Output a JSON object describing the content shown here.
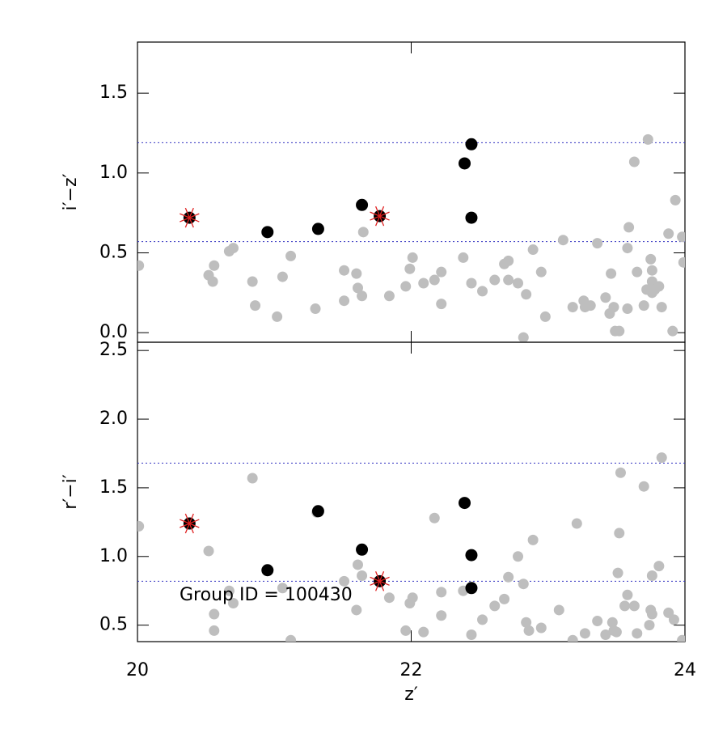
{
  "chart_data": [
    {
      "type": "scatter",
      "ylabel": "i′−z′",
      "xlim": [
        20,
        24
      ],
      "xticks": [
        20,
        22,
        24
      ],
      "xticklabels": false,
      "ylim": [
        -0.06,
        1.82
      ],
      "yticks": [
        {
          "value": 0,
          "label": "0.0"
        },
        {
          "value": 0.5,
          "label": "0.5"
        },
        {
          "value": 1,
          "label": "1.0"
        },
        {
          "value": 1.5,
          "label": "1.5"
        }
      ],
      "hlines": [
        1.19,
        0.57
      ],
      "hline_color": "#3030c0",
      "series": [
        {
          "color": "#bebebe",
          "marker": "circle",
          "x": [
            20.01,
            20.52,
            20.56,
            20.55,
            20.67,
            20.7,
            20.84,
            20.86,
            21.02,
            21.06,
            21.12,
            21.3,
            21.51,
            21.51,
            21.6,
            21.61,
            21.64,
            21.65,
            21.84,
            21.96,
            21.99,
            22.01,
            22.09,
            22.17,
            22.22,
            22.22,
            22.38,
            22.44,
            22.52,
            22.61,
            22.68,
            22.71,
            22.71,
            22.78,
            22.82,
            22.84,
            22.89,
            22.95,
            22.98,
            23.11,
            23.18,
            23.26,
            23.27,
            23.31,
            23.36,
            23.42,
            23.46,
            23.45,
            23.48,
            23.49,
            23.52,
            23.58,
            23.58,
            23.59,
            23.63,
            23.65,
            23.7,
            23.72,
            23.73,
            23.75,
            23.76,
            23.76,
            23.76,
            23.78,
            23.81,
            23.83,
            23.88,
            23.91,
            23.93,
            23.98,
            23.99
          ],
          "y": [
            0.42,
            0.36,
            0.42,
            0.32,
            0.51,
            0.53,
            0.32,
            0.17,
            0.1,
            0.35,
            0.48,
            0.15,
            0.2,
            0.39,
            0.37,
            0.28,
            0.23,
            0.63,
            0.23,
            0.29,
            0.4,
            0.47,
            0.31,
            0.33,
            0.38,
            0.18,
            0.47,
            0.31,
            0.26,
            0.33,
            0.43,
            0.45,
            0.33,
            0.31,
            -0.03,
            0.24,
            0.52,
            0.38,
            0.1,
            0.58,
            0.16,
            0.2,
            0.16,
            0.17,
            0.56,
            0.22,
            0.37,
            0.12,
            0.16,
            0.01,
            0.01,
            0.15,
            0.53,
            0.66,
            1.07,
            0.38,
            0.17,
            0.27,
            1.21,
            0.46,
            0.39,
            0.32,
            0.25,
            0.27,
            0.29,
            0.16,
            0.62,
            0.01,
            0.83,
            0.6,
            0.44
          ]
        },
        {
          "color": "#000000",
          "marker": "circle",
          "x": [
            20.38,
            20.95,
            21.32,
            21.64,
            21.77,
            22.39,
            22.44,
            22.44
          ],
          "y": [
            0.72,
            0.63,
            0.65,
            0.8,
            0.73,
            1.06,
            1.18,
            0.72
          ]
        },
        {
          "color": "#e02020",
          "marker": "star",
          "x": [
            20.38,
            21.77
          ],
          "y": [
            0.72,
            0.73
          ]
        }
      ]
    },
    {
      "type": "scatter",
      "ylabel": "r′−i′",
      "xlabel": "z′",
      "annotation": "Group ID = 100430",
      "xlim": [
        20,
        24
      ],
      "xticks": [
        20,
        22,
        24
      ],
      "xticklabels": true,
      "ylim": [
        0.38,
        2.56
      ],
      "yticks": [
        0.5,
        {
          "value": 1,
          "label": "1.0"
        },
        1.5,
        {
          "value": 2,
          "label": "2.0"
        },
        2.5
      ],
      "hlines": [
        1.68,
        0.82
      ],
      "hline_color": "#3030c0",
      "series": [
        {
          "color": "#bebebe",
          "marker": "circle",
          "x": [
            20.01,
            20.52,
            20.56,
            20.56,
            20.67,
            20.7,
            20.84,
            21.06,
            21.12,
            21.31,
            21.51,
            21.6,
            21.61,
            21.64,
            21.84,
            21.96,
            21.99,
            22.01,
            22.09,
            22.17,
            22.22,
            22.22,
            22.38,
            22.44,
            22.52,
            22.61,
            22.68,
            22.71,
            22.78,
            22.84,
            22.82,
            22.86,
            22.89,
            22.95,
            23.08,
            23.21,
            23.18,
            23.27,
            23.36,
            23.42,
            23.47,
            23.48,
            23.5,
            23.51,
            23.52,
            23.53,
            23.56,
            23.58,
            23.63,
            23.65,
            23.7,
            23.74,
            23.75,
            23.76,
            23.76,
            23.81,
            23.83,
            23.88,
            23.92,
            23.98
          ],
          "y": [
            1.22,
            1.04,
            0.58,
            0.46,
            0.75,
            0.66,
            1.57,
            0.77,
            0.39,
            1.32,
            0.82,
            0.61,
            0.94,
            0.86,
            0.7,
            0.46,
            0.66,
            0.7,
            0.45,
            1.28,
            0.57,
            0.74,
            0.75,
            0.43,
            0.54,
            0.64,
            0.69,
            0.85,
            1.0,
            0.52,
            0.8,
            0.46,
            1.12,
            0.48,
            0.61,
            1.24,
            0.39,
            0.44,
            0.53,
            0.43,
            0.52,
            0.46,
            0.45,
            0.88,
            1.17,
            1.61,
            0.64,
            0.72,
            0.64,
            0.44,
            1.51,
            0.5,
            0.61,
            0.86,
            0.58,
            0.93,
            1.72,
            0.59,
            0.54,
            0.39
          ]
        },
        {
          "color": "#000000",
          "marker": "circle",
          "x": [
            20.38,
            20.95,
            21.32,
            21.64,
            21.77,
            22.39,
            22.44,
            22.44
          ],
          "y": [
            1.24,
            0.9,
            1.33,
            1.05,
            0.82,
            1.39,
            1.01,
            0.77
          ]
        },
        {
          "color": "#e02020",
          "marker": "star",
          "x": [
            20.38,
            21.77
          ],
          "y": [
            1.24,
            0.82
          ]
        }
      ]
    }
  ]
}
